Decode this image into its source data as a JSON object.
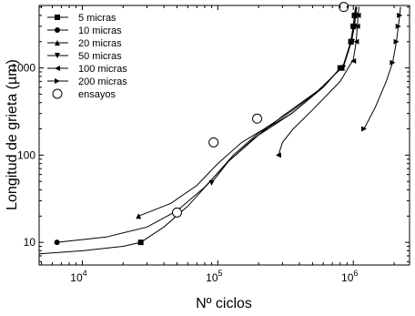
{
  "chart_data": {
    "type": "line",
    "xlabel": "Nº ciclos",
    "ylabel": "Longitud de grieta (µm)",
    "x_scale": "log",
    "y_scale": "log",
    "xlim": [
      4800,
      2600000
    ],
    "ylim": [
      5.5,
      5200
    ],
    "grid": false,
    "legend_position": "top-left",
    "x_ticks": [
      {
        "value": 10000,
        "base": "10",
        "exp": "4"
      },
      {
        "value": 100000,
        "base": "10",
        "exp": "5"
      },
      {
        "value": 1000000,
        "base": "10",
        "exp": "6"
      }
    ],
    "y_ticks": [
      {
        "value": 10,
        "label": "10"
      },
      {
        "value": 100,
        "label": "100"
      },
      {
        "value": 1000,
        "label": "1000"
      }
    ],
    "series": [
      {
        "name": "5 micras",
        "marker": "square",
        "curve": [
          [
            4800,
            7.4
          ],
          [
            10000,
            8.0
          ],
          [
            20000,
            9.0
          ],
          [
            27000,
            10
          ],
          [
            40000,
            15
          ],
          [
            60000,
            26
          ],
          [
            90000,
            52
          ],
          [
            130000,
            100
          ],
          [
            200000,
            180
          ],
          [
            350000,
            300
          ],
          [
            600000,
            600
          ],
          [
            850000,
            1100
          ],
          [
            960000,
            2000
          ],
          [
            1000000,
            3000
          ],
          [
            1020000,
            4000
          ],
          [
            1040000,
            5000
          ]
        ],
        "markers": [
          [
            27000,
            10
          ],
          [
            800000,
            1000
          ],
          [
            960000,
            2000
          ],
          [
            1000000,
            3000
          ],
          [
            1020000,
            4000
          ]
        ]
      },
      {
        "name": "10 micras",
        "marker": "circle",
        "curve": [
          [
            6500,
            10
          ],
          [
            15000,
            11.5
          ],
          [
            30000,
            15
          ],
          [
            50000,
            23
          ],
          [
            80000,
            43
          ],
          [
            120000,
            85
          ],
          [
            200000,
            170
          ],
          [
            350000,
            300
          ],
          [
            600000,
            600
          ],
          [
            850000,
            1100
          ],
          [
            960000,
            2000
          ],
          [
            1000000,
            3000
          ],
          [
            1020000,
            4000
          ],
          [
            1040000,
            5000
          ]
        ],
        "markers": [
          [
            6500,
            10
          ],
          [
            820000,
            1000
          ],
          [
            965000,
            2000
          ],
          [
            1000000,
            3000
          ],
          [
            1020000,
            4000
          ]
        ]
      },
      {
        "name": "20 micras",
        "marker": "triangle-up",
        "curve": [
          [
            26000,
            20
          ],
          [
            45000,
            28
          ],
          [
            70000,
            45
          ],
          [
            100000,
            80
          ],
          [
            150000,
            140
          ],
          [
            220000,
            200
          ],
          [
            350000,
            320
          ],
          [
            600000,
            600
          ],
          [
            850000,
            1100
          ],
          [
            960000,
            2000
          ],
          [
            1000000,
            3000
          ],
          [
            1030000,
            4000
          ],
          [
            1050000,
            5000
          ]
        ],
        "markers": [
          [
            26000,
            20
          ],
          [
            830000,
            1000
          ],
          [
            970000,
            2000
          ],
          [
            1010000,
            3000
          ],
          [
            1030000,
            4000
          ]
        ]
      },
      {
        "name": "50 micras",
        "marker": "triangle-down",
        "curve": [
          [
            90000,
            48
          ],
          [
            120000,
            85
          ],
          [
            180000,
            150
          ],
          [
            300000,
            280
          ],
          [
            550000,
            550
          ],
          [
            850000,
            1050
          ],
          [
            970000,
            2000
          ],
          [
            1020000,
            3000
          ],
          [
            1040000,
            4000
          ],
          [
            1060000,
            5000
          ]
        ],
        "markers": [
          [
            90000,
            48
          ],
          [
            840000,
            1000
          ],
          [
            980000,
            2000
          ],
          [
            1020000,
            3000
          ],
          [
            1040000,
            4000
          ]
        ]
      },
      {
        "name": "100 micras",
        "marker": "triangle-left",
        "curve": [
          [
            280000,
            100
          ],
          [
            300000,
            140
          ],
          [
            360000,
            200
          ],
          [
            500000,
            330
          ],
          [
            800000,
            700
          ],
          [
            1000000,
            1250
          ],
          [
            1050000,
            2000
          ],
          [
            1070000,
            3000
          ],
          [
            1085000,
            4000
          ],
          [
            1100000,
            5000
          ]
        ],
        "markers": [
          [
            280000,
            100
          ],
          [
            1000000,
            1200
          ],
          [
            1050000,
            2000
          ],
          [
            1070000,
            3000
          ],
          [
            1085000,
            4000
          ]
        ]
      },
      {
        "name": "200 micras",
        "marker": "triangle-right",
        "curve": [
          [
            1200000,
            200
          ],
          [
            1450000,
            350
          ],
          [
            1750000,
            700
          ],
          [
            1950000,
            1150
          ],
          [
            2080000,
            2000
          ],
          [
            2150000,
            3000
          ],
          [
            2200000,
            4000
          ],
          [
            2230000,
            5000
          ]
        ],
        "markers": [
          [
            1200000,
            200
          ],
          [
            1950000,
            1150
          ],
          [
            2080000,
            2000
          ],
          [
            2150000,
            3000
          ],
          [
            2200000,
            4000
          ]
        ]
      }
    ],
    "ensayos": {
      "name": "ensayos",
      "marker": "open-circle",
      "points": [
        [
          50000,
          22
        ],
        [
          93000,
          140
        ],
        [
          195000,
          262
        ],
        [
          850000,
          5000
        ]
      ]
    }
  }
}
